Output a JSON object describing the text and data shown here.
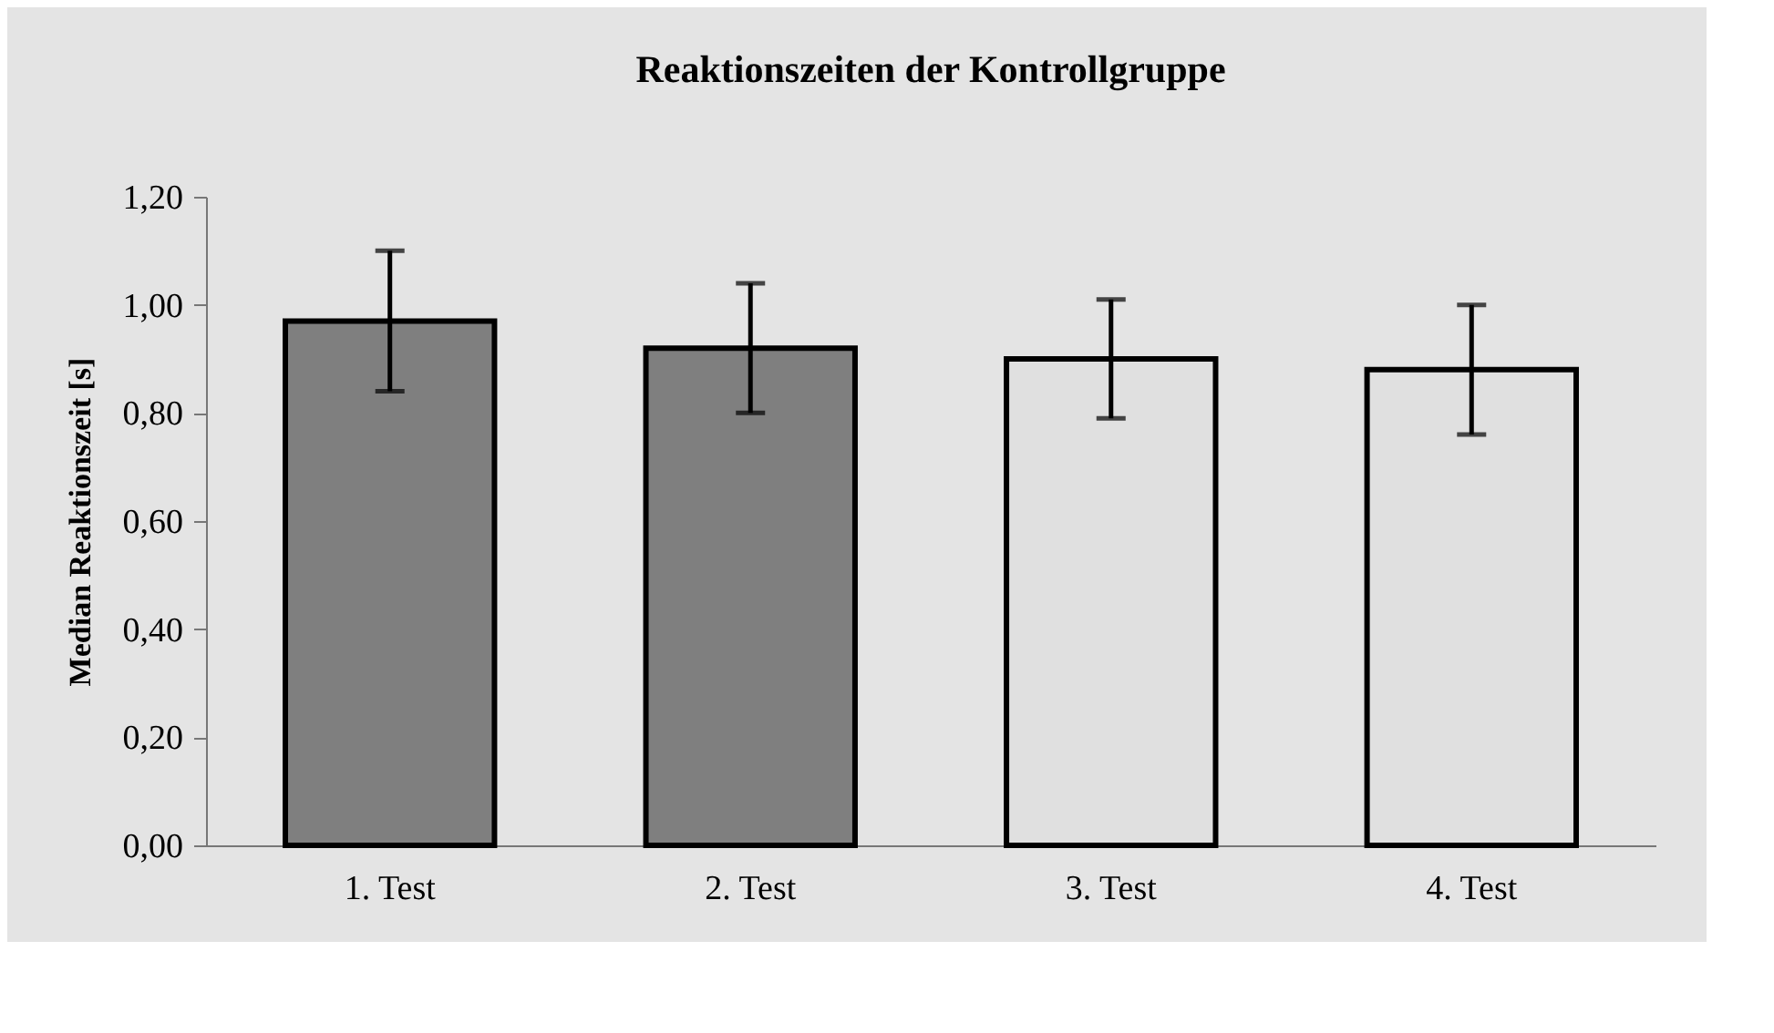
{
  "chart_data": {
    "type": "bar",
    "title": "Reaktionszeiten der Kontrollgruppe",
    "ylabel": "Median Reaktionszeit [s]",
    "categories": [
      "1. Test",
      "2. Test",
      "3. Test",
      "4. Test"
    ],
    "values": [
      0.97,
      0.92,
      0.9,
      0.88
    ],
    "errors": [
      0.13,
      0.12,
      0.11,
      0.12
    ],
    "colors": [
      "#7f7f7f",
      "#7f7f7f",
      "#e0e0e0",
      "#e0e0e0"
    ],
    "ylim": [
      0,
      1.2
    ],
    "yticks": [
      {
        "value": 0,
        "label": "0,00"
      },
      {
        "value": 0.2,
        "label": "0,20"
      },
      {
        "value": 0.4,
        "label": "0,40"
      },
      {
        "value": 0.6,
        "label": "0,60"
      },
      {
        "value": 0.8,
        "label": "0,80"
      },
      {
        "value": 1.0,
        "label": "1,00"
      },
      {
        "value": 1.2,
        "label": "1,20"
      }
    ],
    "grid": false
  }
}
